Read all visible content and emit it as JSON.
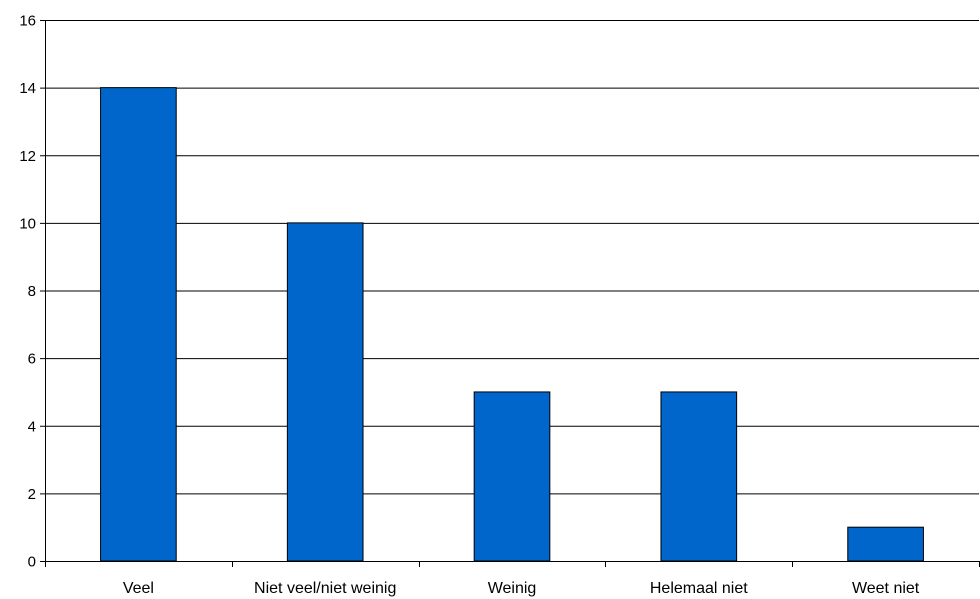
{
  "chart_data": {
    "type": "bar",
    "categories": [
      "Veel",
      "Niet veel/niet weinig",
      "Weinig",
      "Helemaal niet",
      "Weet niet"
    ],
    "values": [
      14,
      10,
      5,
      5,
      1
    ],
    "title": "",
    "xlabel": "",
    "ylabel": "",
    "ylim": [
      0,
      16
    ],
    "yticks": [
      0,
      2,
      4,
      6,
      8,
      10,
      12,
      14,
      16
    ],
    "grid": true,
    "legend": "none",
    "colors": {
      "bar_fill": "#0066CC",
      "bar_stroke": "#000000",
      "grid": "#000000",
      "axis": "#000000"
    }
  }
}
